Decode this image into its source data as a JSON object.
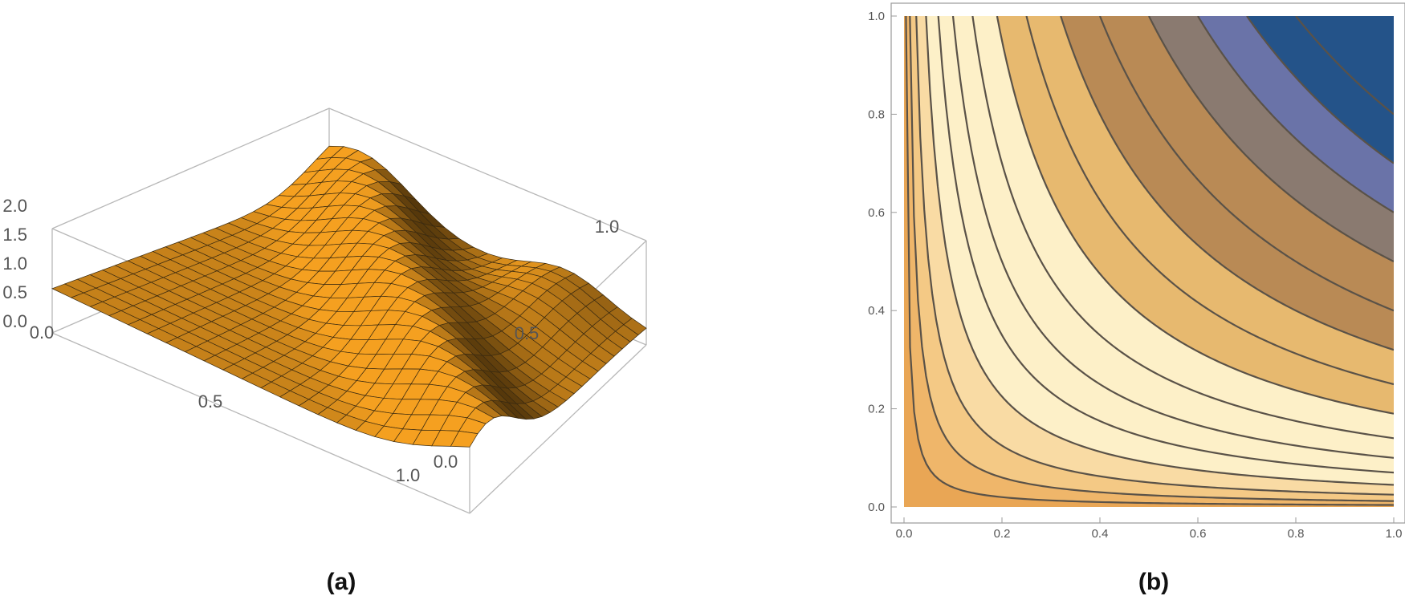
{
  "chart_data": [
    {
      "panel": "(a)",
      "type": "surface-3d",
      "z_ticks": [
        "0.0",
        "0.5",
        "1.0",
        "1.5",
        "2.0"
      ],
      "x_ticks": [
        "0.0",
        "0.5",
        "1.0"
      ],
      "y_ticks": [
        "0.0",
        "0.5",
        "1.0"
      ],
      "xlim": [
        0,
        1
      ],
      "ylim": [
        0,
        1
      ],
      "zlim": [
        0,
        2
      ],
      "surface_color": "#f5a020",
      "mesh": "on"
    },
    {
      "panel": "(b)",
      "type": "contour",
      "x_ticks": [
        "0.0",
        "0.2",
        "0.4",
        "0.6",
        "0.8",
        "1.0"
      ],
      "y_ticks": [
        "0.0",
        "0.2",
        "0.4",
        "0.6",
        "0.8",
        "1.0"
      ],
      "xlim": [
        0,
        1
      ],
      "ylim": [
        0,
        1
      ],
      "fill_colors": [
        "#e9a655",
        "#efb66a",
        "#f4c985",
        "#f9dba4",
        "#fdf0c8",
        "#e7b96f",
        "#b98a55",
        "#8a7a70",
        "#6a73a8",
        "#245389"
      ],
      "line_color": "#5a5248"
    }
  ]
}
